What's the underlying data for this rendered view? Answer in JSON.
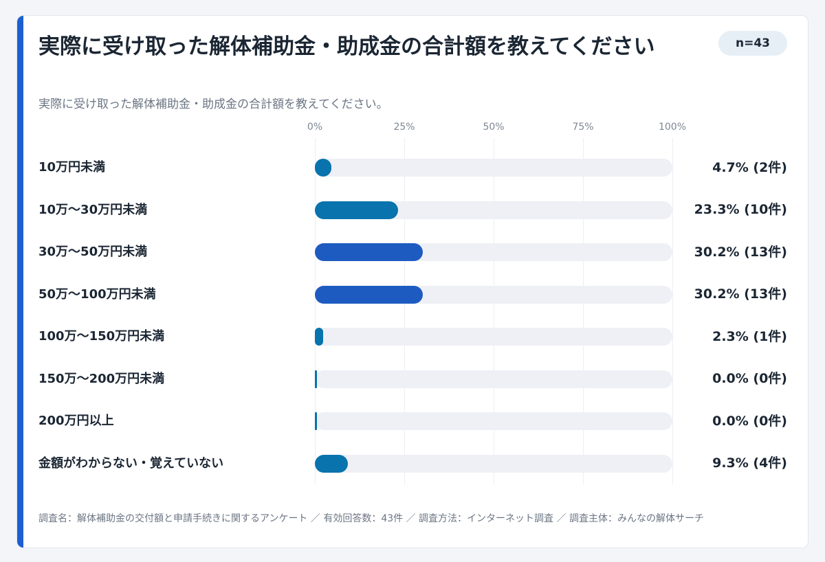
{
  "card": {
    "title": "実際に受け取った解体補助金・助成金の合計額を教えてください",
    "subtitle": "実際に受け取った解体補助金・助成金の合計額を教えてください。",
    "sample_badge": "n=43",
    "footer": "調査名：解体補助金の交付額と申請手続きに関するアンケート ／ 有効回答数：43件 ／ 調査方法：インターネット調査 ／ 調査主体：みんなの解体サーチ"
  },
  "colors": {
    "accent": "#1c5fd1",
    "bar_teal": "#0873ad",
    "bar_blue": "#1d5bc1",
    "track": "#eef0f5"
  },
  "chart_data": {
    "type": "bar",
    "orientation": "horizontal",
    "title": "実際に受け取った解体補助金・助成金の合計額を教えてください",
    "xlim": [
      0,
      100
    ],
    "x_ticks": [
      "0%",
      "25%",
      "50%",
      "75%",
      "100%"
    ],
    "grid": true,
    "categories": [
      "10万円未満",
      "10万〜30万円未満",
      "30万〜50万円未満",
      "50万〜100万円未満",
      "100万〜150万円未満",
      "150万〜200万円未満",
      "200万円以上",
      "金額がわからない・覚えていない"
    ],
    "values": [
      4.7,
      23.3,
      30.2,
      30.2,
      2.3,
      0.0,
      0.0,
      9.3
    ],
    "counts": [
      2,
      10,
      13,
      13,
      1,
      0,
      0,
      4
    ],
    "value_labels": [
      "4.7% (2件)",
      "23.3% (10件)",
      "30.2% (13件)",
      "30.2% (13件)",
      "2.3% (1件)",
      "0.0% (0件)",
      "0.0% (0件)",
      "9.3% (4件)"
    ],
    "highlight": [
      false,
      false,
      true,
      true,
      false,
      false,
      false,
      false
    ]
  }
}
